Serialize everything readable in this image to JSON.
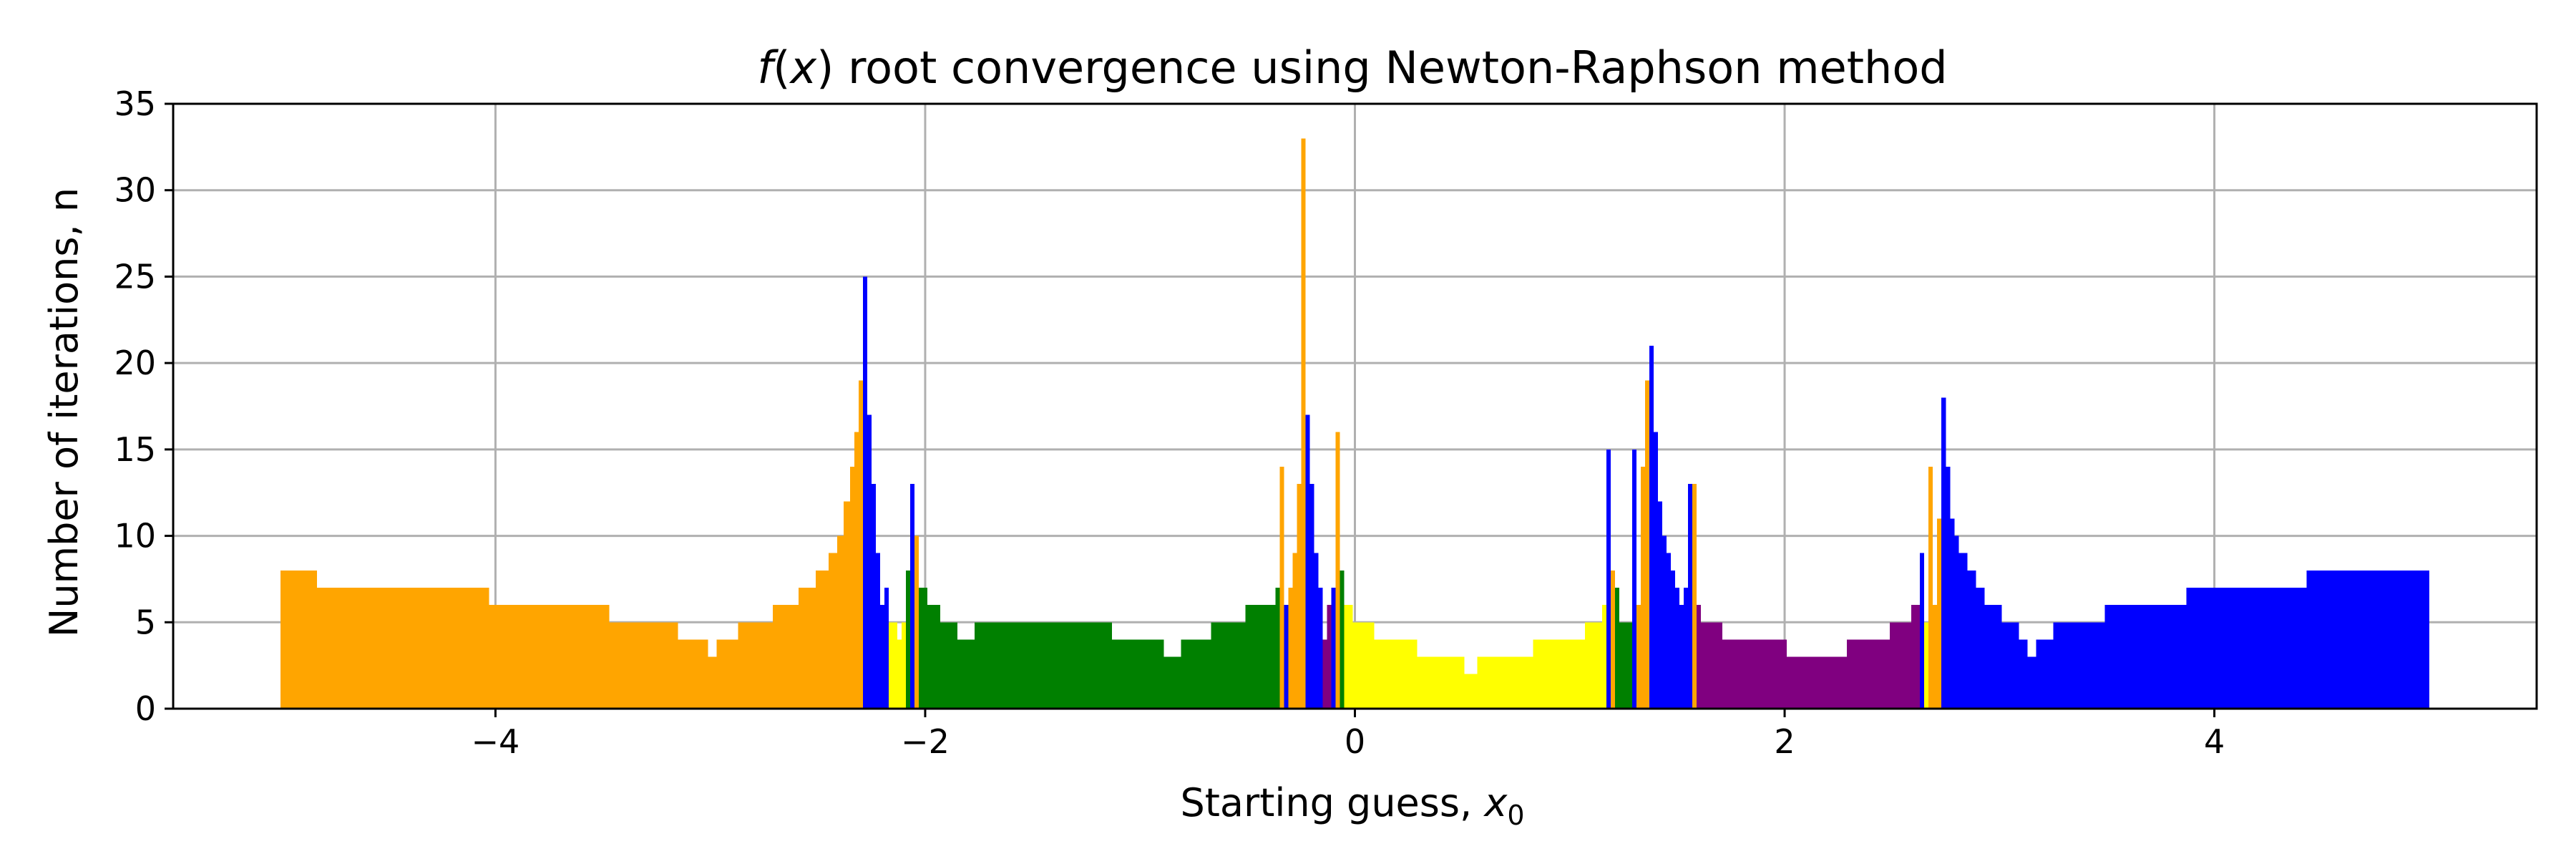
{
  "chart_data": {
    "type": "bar",
    "title": {
      "italic": "f",
      "prefix": "(",
      "var": "x",
      "rest": ") root convergence using Newton-Raphson method"
    },
    "xlabel": {
      "text": "Starting guess, ",
      "var": "x",
      "sub": "0"
    },
    "ylabel": "Number of iterations, n",
    "xlim": [
      -5.5,
      5.5
    ],
    "ylim": [
      0,
      35
    ],
    "xticks": [
      -4,
      -2,
      0,
      2,
      4
    ],
    "xtick_labels": [
      "−4",
      "−2",
      "0",
      "2",
      "4"
    ],
    "yticks": [
      0,
      5,
      10,
      15,
      20,
      25,
      30,
      35
    ],
    "ytick_labels": [
      "0",
      "5",
      "10",
      "15",
      "20",
      "25",
      "30",
      "35"
    ],
    "grid": true,
    "colors": {
      "orange": "#ffa500",
      "yellow": "#ffff00",
      "green": "#008000",
      "purple": "#800080",
      "blue": "#0000ff",
      "grid": "#b0b0b0"
    },
    "x_step": 0.02,
    "segments": [
      {
        "x0": -5.0,
        "x1": -4.83,
        "y": 8,
        "color": "orange"
      },
      {
        "x0": -4.83,
        "x1": -4.03,
        "y": 7,
        "color": "orange"
      },
      {
        "x0": -4.03,
        "x1": -3.47,
        "y": 6,
        "color": "orange"
      },
      {
        "x0": -3.47,
        "x1": -3.15,
        "y": 5,
        "color": "orange"
      },
      {
        "x0": -3.15,
        "x1": -3.01,
        "y": 4,
        "color": "orange"
      },
      {
        "x0": -3.01,
        "x1": -2.97,
        "y": 3,
        "color": "orange"
      },
      {
        "x0": -2.97,
        "x1": -2.87,
        "y": 4,
        "color": "orange"
      },
      {
        "x0": -2.87,
        "x1": -2.71,
        "y": 5,
        "color": "orange"
      },
      {
        "x0": -2.71,
        "x1": -2.59,
        "y": 6,
        "color": "orange"
      },
      {
        "x0": -2.59,
        "x1": -2.51,
        "y": 7,
        "color": "orange"
      },
      {
        "x0": -2.51,
        "x1": -2.45,
        "y": 8,
        "color": "orange"
      },
      {
        "x0": -2.45,
        "x1": -2.41,
        "y": 9,
        "color": "orange"
      },
      {
        "x0": -2.41,
        "x1": -2.38,
        "y": 10,
        "color": "orange"
      },
      {
        "x0": -2.38,
        "x1": -2.35,
        "y": 12,
        "color": "orange"
      },
      {
        "x0": -2.35,
        "x1": -2.33,
        "y": 14,
        "color": "orange"
      },
      {
        "x0": -2.33,
        "x1": -2.31,
        "y": 16,
        "color": "orange"
      },
      {
        "x0": -2.31,
        "x1": -2.29,
        "y": 19,
        "color": "orange"
      },
      {
        "x0": -2.29,
        "x1": -2.27,
        "y": 25,
        "color": "blue"
      },
      {
        "x0": -2.27,
        "x1": -2.25,
        "y": 17,
        "color": "blue"
      },
      {
        "x0": -2.25,
        "x1": -2.23,
        "y": 13,
        "color": "blue"
      },
      {
        "x0": -2.23,
        "x1": -2.21,
        "y": 9,
        "color": "blue"
      },
      {
        "x0": -2.21,
        "x1": -2.19,
        "y": 6,
        "color": "blue"
      },
      {
        "x0": -2.19,
        "x1": -2.17,
        "y": 7,
        "color": "blue"
      },
      {
        "x0": -2.17,
        "x1": -2.13,
        "y": 5,
        "color": "yellow"
      },
      {
        "x0": -2.13,
        "x1": -2.11,
        "y": 4,
        "color": "yellow"
      },
      {
        "x0": -2.11,
        "x1": -2.09,
        "y": 5,
        "color": "yellow"
      },
      {
        "x0": -2.09,
        "x1": -2.07,
        "y": 8,
        "color": "green"
      },
      {
        "x0": -2.07,
        "x1": -2.05,
        "y": 13,
        "color": "blue"
      },
      {
        "x0": -2.05,
        "x1": -2.03,
        "y": 10,
        "color": "orange"
      },
      {
        "x0": -2.03,
        "x1": -1.99,
        "y": 7,
        "color": "green"
      },
      {
        "x0": -1.99,
        "x1": -1.93,
        "y": 6,
        "color": "green"
      },
      {
        "x0": -1.93,
        "x1": -1.85,
        "y": 5,
        "color": "green"
      },
      {
        "x0": -1.85,
        "x1": -1.77,
        "y": 4,
        "color": "green"
      },
      {
        "x0": -1.77,
        "x1": -1.13,
        "y": 5,
        "color": "green"
      },
      {
        "x0": -1.13,
        "x1": -0.89,
        "y": 4,
        "color": "green"
      },
      {
        "x0": -0.89,
        "x1": -0.81,
        "y": 3,
        "color": "green"
      },
      {
        "x0": -0.81,
        "x1": -0.67,
        "y": 4,
        "color": "green"
      },
      {
        "x0": -0.67,
        "x1": -0.51,
        "y": 5,
        "color": "green"
      },
      {
        "x0": -0.51,
        "x1": -0.37,
        "y": 6,
        "color": "green"
      },
      {
        "x0": -0.37,
        "x1": -0.35,
        "y": 7,
        "color": "green"
      },
      {
        "x0": -0.35,
        "x1": -0.33,
        "y": 14,
        "color": "orange"
      },
      {
        "x0": -0.33,
        "x1": -0.31,
        "y": 6,
        "color": "blue"
      },
      {
        "x0": -0.31,
        "x1": -0.29,
        "y": 7,
        "color": "orange"
      },
      {
        "x0": -0.29,
        "x1": -0.27,
        "y": 9,
        "color": "orange"
      },
      {
        "x0": -0.27,
        "x1": -0.25,
        "y": 13,
        "color": "orange"
      },
      {
        "x0": -0.25,
        "x1": -0.23,
        "y": 33,
        "color": "orange"
      },
      {
        "x0": -0.23,
        "x1": -0.21,
        "y": 17,
        "color": "blue"
      },
      {
        "x0": -0.21,
        "x1": -0.19,
        "y": 13,
        "color": "blue"
      },
      {
        "x0": -0.19,
        "x1": -0.17,
        "y": 9,
        "color": "blue"
      },
      {
        "x0": -0.17,
        "x1": -0.15,
        "y": 7,
        "color": "blue"
      },
      {
        "x0": -0.15,
        "x1": -0.13,
        "y": 4,
        "color": "purple"
      },
      {
        "x0": -0.13,
        "x1": -0.11,
        "y": 6,
        "color": "purple"
      },
      {
        "x0": -0.11,
        "x1": -0.09,
        "y": 7,
        "color": "blue"
      },
      {
        "x0": -0.09,
        "x1": -0.07,
        "y": 16,
        "color": "orange"
      },
      {
        "x0": -0.07,
        "x1": -0.05,
        "y": 8,
        "color": "green"
      },
      {
        "x0": -0.05,
        "x1": -0.01,
        "y": 6,
        "color": "yellow"
      },
      {
        "x0": -0.01,
        "x1": 0.09,
        "y": 5,
        "color": "yellow"
      },
      {
        "x0": 0.09,
        "x1": 0.29,
        "y": 4,
        "color": "yellow"
      },
      {
        "x0": 0.29,
        "x1": 0.51,
        "y": 3,
        "color": "yellow"
      },
      {
        "x0": 0.51,
        "x1": 0.57,
        "y": 2,
        "color": "yellow"
      },
      {
        "x0": 0.57,
        "x1": 0.83,
        "y": 3,
        "color": "yellow"
      },
      {
        "x0": 0.83,
        "x1": 1.07,
        "y": 4,
        "color": "yellow"
      },
      {
        "x0": 1.07,
        "x1": 1.15,
        "y": 5,
        "color": "yellow"
      },
      {
        "x0": 1.15,
        "x1": 1.17,
        "y": 6,
        "color": "yellow"
      },
      {
        "x0": 1.17,
        "x1": 1.19,
        "y": 15,
        "color": "blue"
      },
      {
        "x0": 1.19,
        "x1": 1.21,
        "y": 8,
        "color": "orange"
      },
      {
        "x0": 1.21,
        "x1": 1.23,
        "y": 7,
        "color": "green"
      },
      {
        "x0": 1.23,
        "x1": 1.29,
        "y": 5,
        "color": "green"
      },
      {
        "x0": 1.29,
        "x1": 1.31,
        "y": 15,
        "color": "blue"
      },
      {
        "x0": 1.31,
        "x1": 1.33,
        "y": 6,
        "color": "orange"
      },
      {
        "x0": 1.33,
        "x1": 1.35,
        "y": 14,
        "color": "orange"
      },
      {
        "x0": 1.35,
        "x1": 1.37,
        "y": 19,
        "color": "orange"
      },
      {
        "x0": 1.37,
        "x1": 1.39,
        "y": 21,
        "color": "blue"
      },
      {
        "x0": 1.39,
        "x1": 1.41,
        "y": 16,
        "color": "blue"
      },
      {
        "x0": 1.41,
        "x1": 1.43,
        "y": 12,
        "color": "blue"
      },
      {
        "x0": 1.43,
        "x1": 1.45,
        "y": 10,
        "color": "blue"
      },
      {
        "x0": 1.45,
        "x1": 1.47,
        "y": 9,
        "color": "blue"
      },
      {
        "x0": 1.47,
        "x1": 1.49,
        "y": 8,
        "color": "blue"
      },
      {
        "x0": 1.49,
        "x1": 1.51,
        "y": 7,
        "color": "blue"
      },
      {
        "x0": 1.51,
        "x1": 1.53,
        "y": 6,
        "color": "blue"
      },
      {
        "x0": 1.53,
        "x1": 1.55,
        "y": 7,
        "color": "blue"
      },
      {
        "x0": 1.55,
        "x1": 1.57,
        "y": 13,
        "color": "blue"
      },
      {
        "x0": 1.57,
        "x1": 1.59,
        "y": 13,
        "color": "orange"
      },
      {
        "x0": 1.59,
        "x1": 1.61,
        "y": 6,
        "color": "purple"
      },
      {
        "x0": 1.61,
        "x1": 1.71,
        "y": 5,
        "color": "purple"
      },
      {
        "x0": 1.71,
        "x1": 2.01,
        "y": 4,
        "color": "purple"
      },
      {
        "x0": 2.01,
        "x1": 2.29,
        "y": 3,
        "color": "purple"
      },
      {
        "x0": 2.29,
        "x1": 2.49,
        "y": 4,
        "color": "purple"
      },
      {
        "x0": 2.49,
        "x1": 2.59,
        "y": 5,
        "color": "purple"
      },
      {
        "x0": 2.59,
        "x1": 2.63,
        "y": 6,
        "color": "purple"
      },
      {
        "x0": 2.63,
        "x1": 2.65,
        "y": 9,
        "color": "blue"
      },
      {
        "x0": 2.65,
        "x1": 2.67,
        "y": 5,
        "color": "yellow"
      },
      {
        "x0": 2.67,
        "x1": 2.69,
        "y": 14,
        "color": "orange"
      },
      {
        "x0": 2.69,
        "x1": 2.71,
        "y": 6,
        "color": "orange"
      },
      {
        "x0": 2.71,
        "x1": 2.73,
        "y": 11,
        "color": "orange"
      },
      {
        "x0": 2.73,
        "x1": 2.75,
        "y": 18,
        "color": "blue"
      },
      {
        "x0": 2.75,
        "x1": 2.77,
        "y": 14,
        "color": "blue"
      },
      {
        "x0": 2.77,
        "x1": 2.79,
        "y": 11,
        "color": "blue"
      },
      {
        "x0": 2.79,
        "x1": 2.81,
        "y": 10,
        "color": "blue"
      },
      {
        "x0": 2.81,
        "x1": 2.85,
        "y": 9,
        "color": "blue"
      },
      {
        "x0": 2.85,
        "x1": 2.89,
        "y": 8,
        "color": "blue"
      },
      {
        "x0": 2.89,
        "x1": 2.93,
        "y": 7,
        "color": "blue"
      },
      {
        "x0": 2.93,
        "x1": 3.01,
        "y": 6,
        "color": "blue"
      },
      {
        "x0": 3.01,
        "x1": 3.09,
        "y": 5,
        "color": "blue"
      },
      {
        "x0": 3.09,
        "x1": 3.13,
        "y": 4,
        "color": "blue"
      },
      {
        "x0": 3.13,
        "x1": 3.17,
        "y": 3,
        "color": "blue"
      },
      {
        "x0": 3.17,
        "x1": 3.25,
        "y": 4,
        "color": "blue"
      },
      {
        "x0": 3.25,
        "x1": 3.49,
        "y": 5,
        "color": "blue"
      },
      {
        "x0": 3.49,
        "x1": 3.87,
        "y": 6,
        "color": "blue"
      },
      {
        "x0": 3.87,
        "x1": 4.43,
        "y": 7,
        "color": "blue"
      },
      {
        "x0": 4.43,
        "x1": 5.0,
        "y": 8,
        "color": "blue"
      }
    ]
  }
}
